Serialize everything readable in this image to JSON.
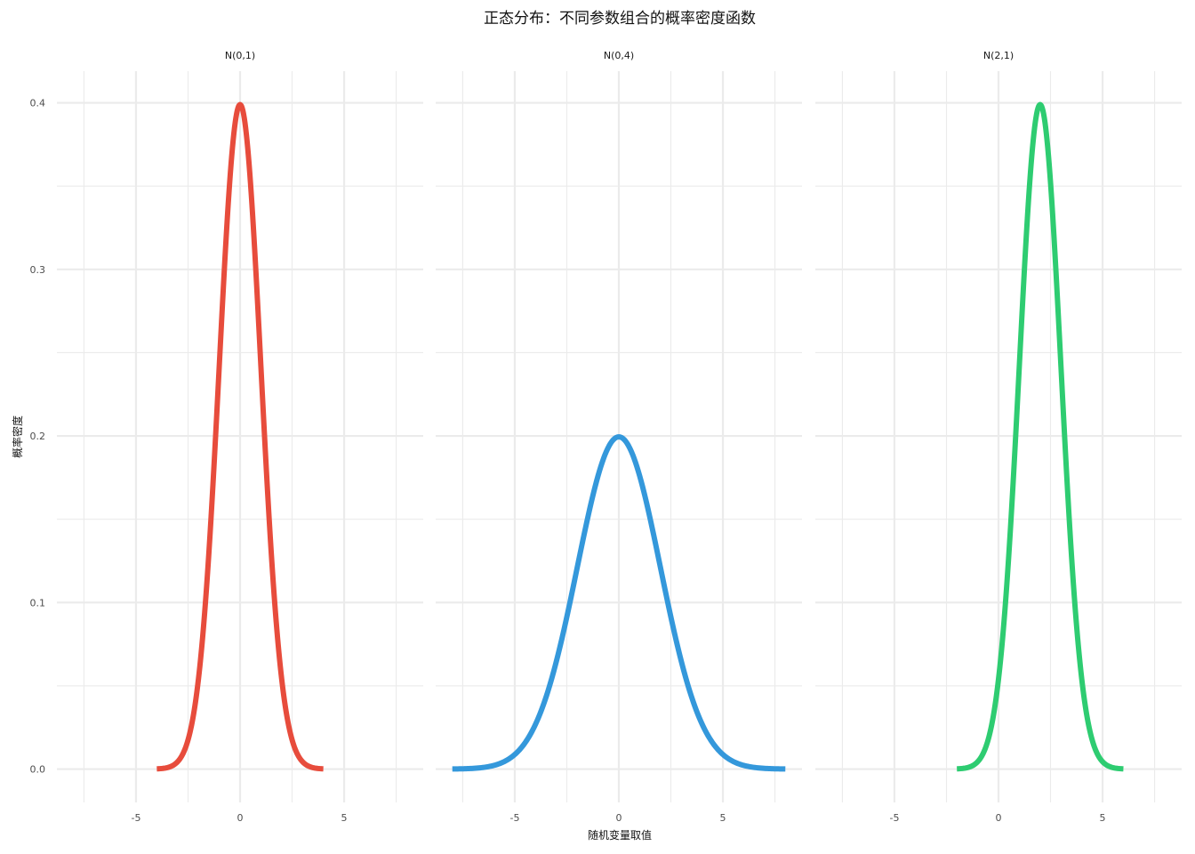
{
  "chart_data": {
    "type": "line",
    "title": "正态分布：不同参数组合的概率密度函数",
    "xlabel": "随机变量取值",
    "ylabel": "概率密度",
    "xlim": [
      -8.8,
      8.8
    ],
    "ylim": [
      -0.02,
      0.419
    ],
    "x_ticks": [
      -5,
      0,
      5
    ],
    "x_tick_labels": [
      "-5",
      "0",
      "5"
    ],
    "x_minor_ticks": [
      -7.5,
      -2.5,
      2.5,
      7.5
    ],
    "y_ticks": [
      0.0,
      0.1,
      0.2,
      0.3,
      0.4
    ],
    "y_tick_labels": [
      "0.0",
      "0.1",
      "0.2",
      "0.3",
      "0.4"
    ],
    "y_minor_ticks": [
      0.05,
      0.15,
      0.25,
      0.35
    ],
    "grid": true,
    "legend": "none",
    "panels": [
      {
        "label": "N(0,1)",
        "color": "#e74c3c",
        "mean": 0,
        "sd": 1,
        "x_range": [
          -4,
          4
        ]
      },
      {
        "label": "N(0,4)",
        "color": "#3498db",
        "mean": 0,
        "sd": 2,
        "x_range": [
          -8,
          8
        ]
      },
      {
        "label": "N(2,1)",
        "color": "#2ecc71",
        "mean": 2,
        "sd": 1,
        "x_range": [
          -2,
          6
        ]
      }
    ]
  }
}
